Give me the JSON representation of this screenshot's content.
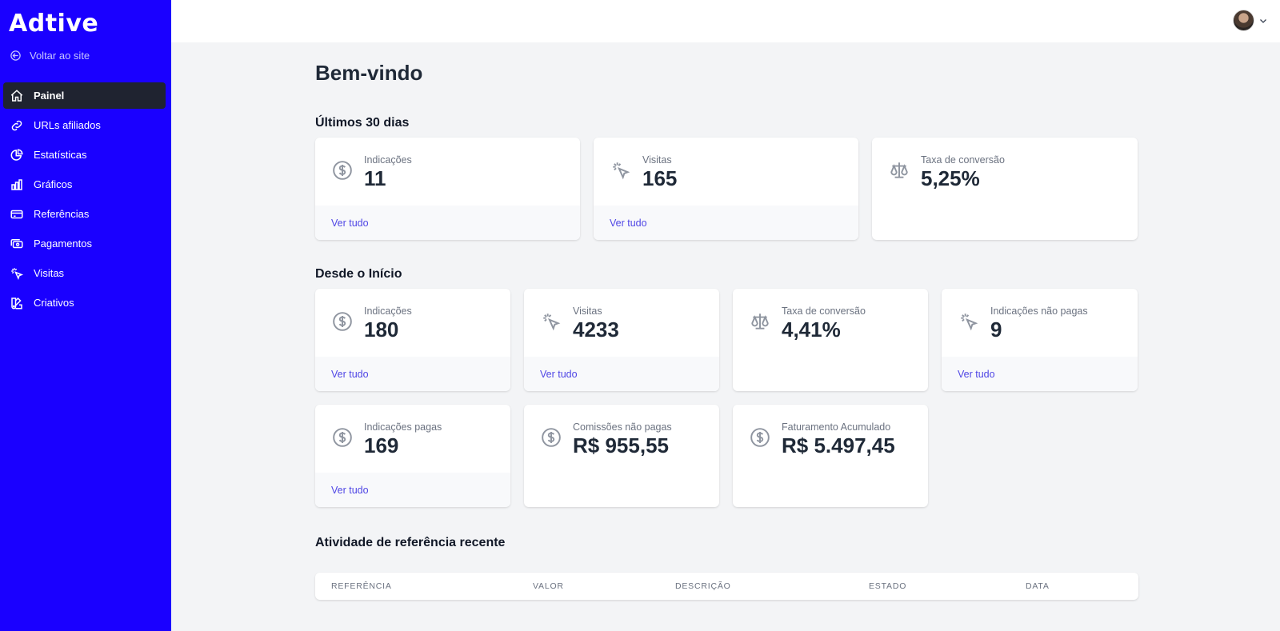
{
  "sidebar": {
    "logo": "Adtive",
    "back_link": "Voltar ao site",
    "items": [
      {
        "label": "Painel",
        "icon": "home-icon",
        "active": true
      },
      {
        "label": "URLs afiliados",
        "icon": "link-icon"
      },
      {
        "label": "Estatísticas",
        "icon": "pie-chart-icon"
      },
      {
        "label": "Gráficos",
        "icon": "bar-chart-icon"
      },
      {
        "label": "Referências",
        "icon": "credit-card-icon"
      },
      {
        "label": "Pagamentos",
        "icon": "cash-icon"
      },
      {
        "label": "Visitas",
        "icon": "cursor-click-icon"
      },
      {
        "label": "Criativos",
        "icon": "color-swatch-icon"
      }
    ]
  },
  "header": {
    "avatar": "user-avatar"
  },
  "main": {
    "title": "Bem-vindo",
    "last30": {
      "title": "Últimos 30 dias",
      "cards": [
        {
          "label": "Indicações",
          "value": "11",
          "link": "Ver tudo",
          "icon": "dollar-icon"
        },
        {
          "label": "Visitas",
          "value": "165",
          "link": "Ver tudo",
          "icon": "cursor-click-icon"
        },
        {
          "label": "Taxa de conversão",
          "value": "5,25%",
          "icon": "scale-icon"
        }
      ]
    },
    "alltime": {
      "title": "Desde o Início",
      "cards": [
        {
          "label": "Indicações",
          "value": "180",
          "link": "Ver tudo",
          "icon": "dollar-icon"
        },
        {
          "label": "Visitas",
          "value": "4233",
          "link": "Ver tudo",
          "icon": "cursor-click-icon"
        },
        {
          "label": "Taxa de conversão",
          "value": "4,41%",
          "icon": "scale-icon"
        },
        {
          "label": "Indicações não pagas",
          "value": "9",
          "link": "Ver tudo",
          "icon": "cursor-click-icon"
        },
        {
          "label": "Indicações pagas",
          "value": "169",
          "link": "Ver tudo",
          "icon": "dollar-icon"
        },
        {
          "label": "Comissões não pagas",
          "value": "R$ 955,55",
          "icon": "dollar-icon"
        },
        {
          "label": "Faturamento Acumulado",
          "value": "R$ 5.497,45",
          "icon": "dollar-icon"
        }
      ]
    },
    "recent": {
      "title": "Atividade de referência recente",
      "columns": [
        "REFERÊNCIA",
        "VALOR",
        "DESCRIÇÃO",
        "ESTADO",
        "DATA"
      ]
    }
  },
  "colors": {
    "sidebar_bg": "#1a00ff",
    "active_item_bg": "#1f2330",
    "link": "#4f46e5",
    "logo_dot": "#22c55e"
  }
}
